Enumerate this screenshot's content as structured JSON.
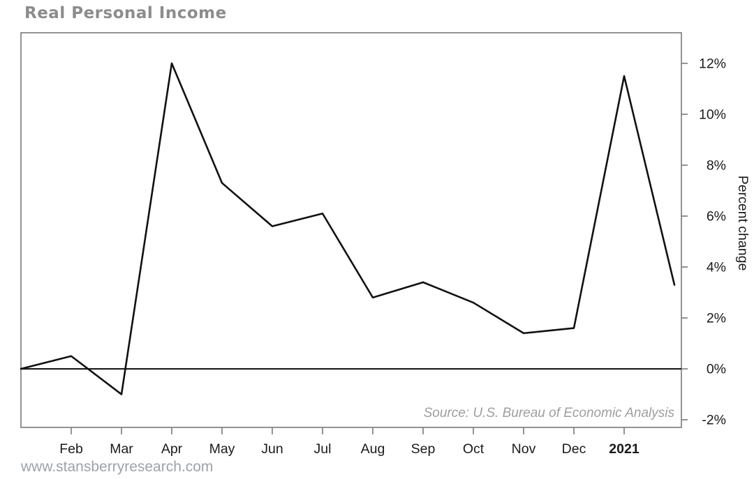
{
  "page": {
    "title": "Real Personal Income",
    "footer_url": "www.stansberryresearch.com"
  },
  "chart_data": {
    "type": "line",
    "title": "Real Personal Income",
    "categories": [
      "",
      "Feb",
      "Mar",
      "Apr",
      "May",
      "Jun",
      "Jul",
      "Aug",
      "Sep",
      "Oct",
      "Nov",
      "Dec",
      "2021",
      ""
    ],
    "series": [
      {
        "name": "Real Personal Income",
        "values": [
          0.0,
          0.5,
          -1.0,
          12.0,
          7.3,
          5.6,
          6.1,
          2.8,
          3.4,
          2.6,
          1.4,
          1.6,
          11.5,
          3.3
        ]
      }
    ],
    "xlabel": "",
    "ylabel": "Percent change",
    "y_ticks": [
      {
        "value": -2,
        "label": "-2%"
      },
      {
        "value": 0,
        "label": "0%"
      },
      {
        "value": 2,
        "label": "2%"
      },
      {
        "value": 4,
        "label": "4%"
      },
      {
        "value": 6,
        "label": "6%"
      },
      {
        "value": 8,
        "label": "8%"
      },
      {
        "value": 10,
        "label": "10%"
      },
      {
        "value": 12,
        "label": "12%"
      }
    ],
    "ylim": [
      -2.3,
      13.2
    ],
    "y_axis_side": "right",
    "grid": false,
    "zero_line": true,
    "legend": "none",
    "bold_x_labels": [
      "2021"
    ],
    "source_note": "Source: U.S. Bureau of Economic Analysis",
    "colors": {
      "line": "#111111",
      "zero_line": "#1a1a1a",
      "axis_box": "#808080",
      "tick": "#808080",
      "tick_label": "#1a1a1a",
      "title": "#8c8c8c",
      "source_note": "#9e9e9e",
      "footer_url": "#9ba3ab"
    }
  }
}
